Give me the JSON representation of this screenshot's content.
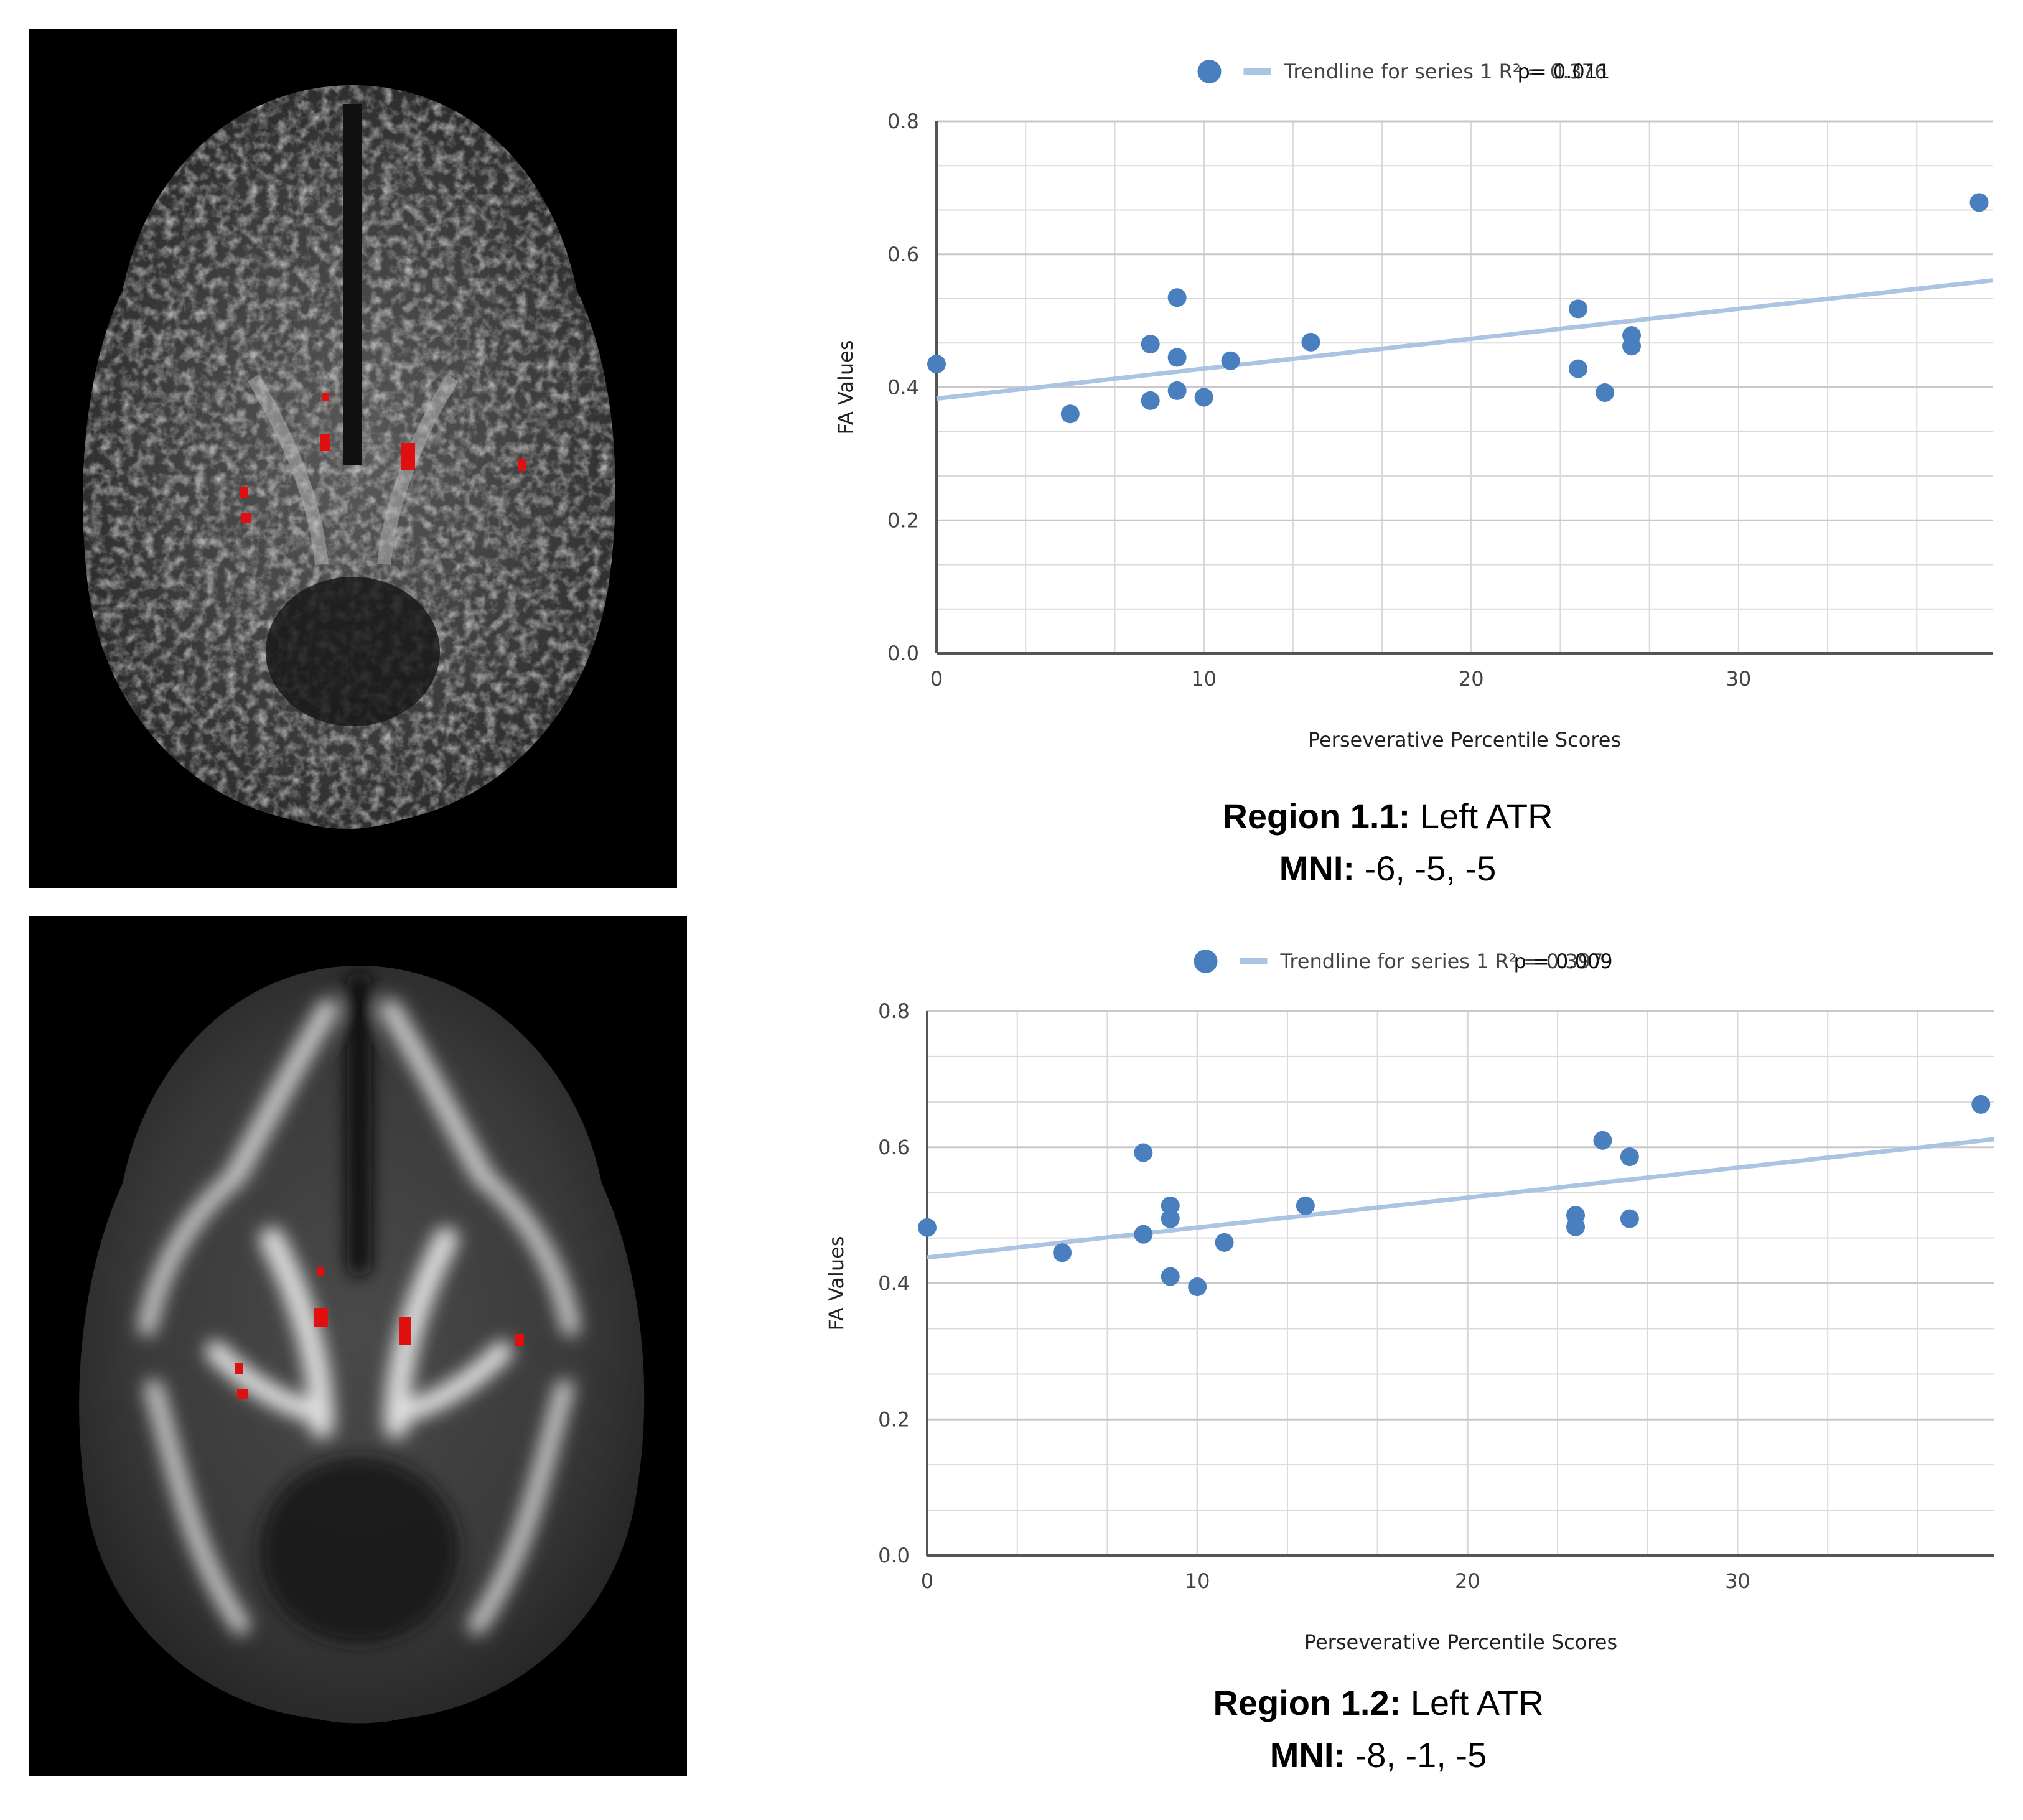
{
  "chart_data": [
    {
      "type": "scatter",
      "title": "",
      "xlabel": "Perseverative Percentile Scores",
      "ylabel": "FA Values",
      "xlim": [
        0,
        39.5
      ],
      "ylim": [
        0,
        0.8
      ],
      "xticks": [
        0,
        10,
        20,
        30
      ],
      "yticks": [
        0.0,
        0.2,
        0.4,
        0.6,
        0.8
      ],
      "grid": true,
      "legend_position": "top-center",
      "legend": {
        "trendline_label": "Trendline for series 1 R² = 0.376",
        "p_value_label": "p= 0.011"
      },
      "trendline": {
        "intercept": 0.383,
        "slope": 0.0045
      },
      "points": [
        {
          "x": 0,
          "y": 0.435
        },
        {
          "x": 5,
          "y": 0.36
        },
        {
          "x": 8,
          "y": 0.465
        },
        {
          "x": 8,
          "y": 0.38
        },
        {
          "x": 9,
          "y": 0.535
        },
        {
          "x": 9,
          "y": 0.445
        },
        {
          "x": 9,
          "y": 0.395
        },
        {
          "x": 10,
          "y": 0.385
        },
        {
          "x": 11,
          "y": 0.44
        },
        {
          "x": 14,
          "y": 0.468
        },
        {
          "x": 24,
          "y": 0.518
        },
        {
          "x": 24,
          "y": 0.428
        },
        {
          "x": 25,
          "y": 0.392
        },
        {
          "x": 26,
          "y": 0.478
        },
        {
          "x": 26,
          "y": 0.462
        },
        {
          "x": 39,
          "y": 0.678
        }
      ],
      "caption": {
        "region_label": "Region 1.1:",
        "region_value": "Left ATR",
        "mni_label": "MNI:",
        "mni_value": "-6, -5, -5"
      }
    },
    {
      "type": "scatter",
      "title": "",
      "xlabel": "Perseverative Percentile Scores",
      "ylabel": "FA Values",
      "xlim": [
        0,
        39.5
      ],
      "ylim": [
        0,
        0.8
      ],
      "xticks": [
        0,
        10,
        20,
        30
      ],
      "yticks": [
        0.0,
        0.2,
        0.4,
        0.6,
        0.8
      ],
      "grid": true,
      "legend_position": "top-center",
      "legend": {
        "trendline_label": "Trendline for series 1 R² = 0.397",
        "p_value_label": "p = 0.009"
      },
      "trendline": {
        "intercept": 0.438,
        "slope": 0.0044
      },
      "points": [
        {
          "x": 0,
          "y": 0.482
        },
        {
          "x": 5,
          "y": 0.445
        },
        {
          "x": 8,
          "y": 0.592
        },
        {
          "x": 8,
          "y": 0.472
        },
        {
          "x": 9,
          "y": 0.514
        },
        {
          "x": 9,
          "y": 0.495
        },
        {
          "x": 9,
          "y": 0.41
        },
        {
          "x": 10,
          "y": 0.395
        },
        {
          "x": 11,
          "y": 0.46
        },
        {
          "x": 14,
          "y": 0.514
        },
        {
          "x": 24,
          "y": 0.5
        },
        {
          "x": 24,
          "y": 0.483
        },
        {
          "x": 25,
          "y": 0.61
        },
        {
          "x": 26,
          "y": 0.586
        },
        {
          "x": 26,
          "y": 0.495
        },
        {
          "x": 39,
          "y": 0.663
        }
      ],
      "caption": {
        "region_label": "Region 1.2:",
        "region_value": "Left ATR",
        "mni_label": "MNI:",
        "mni_value": "-8, -1, -5"
      }
    }
  ],
  "images": [
    {
      "description_name": "fa-brain-axial-slice"
    },
    {
      "description_name": "mean-fa-brain-axial-slice"
    }
  ],
  "colors": {
    "point": "#4a7fbf",
    "trendline": "#aac4e3",
    "grid": "#d9d9d9",
    "axis": "#555555",
    "roi": "#e01010"
  }
}
